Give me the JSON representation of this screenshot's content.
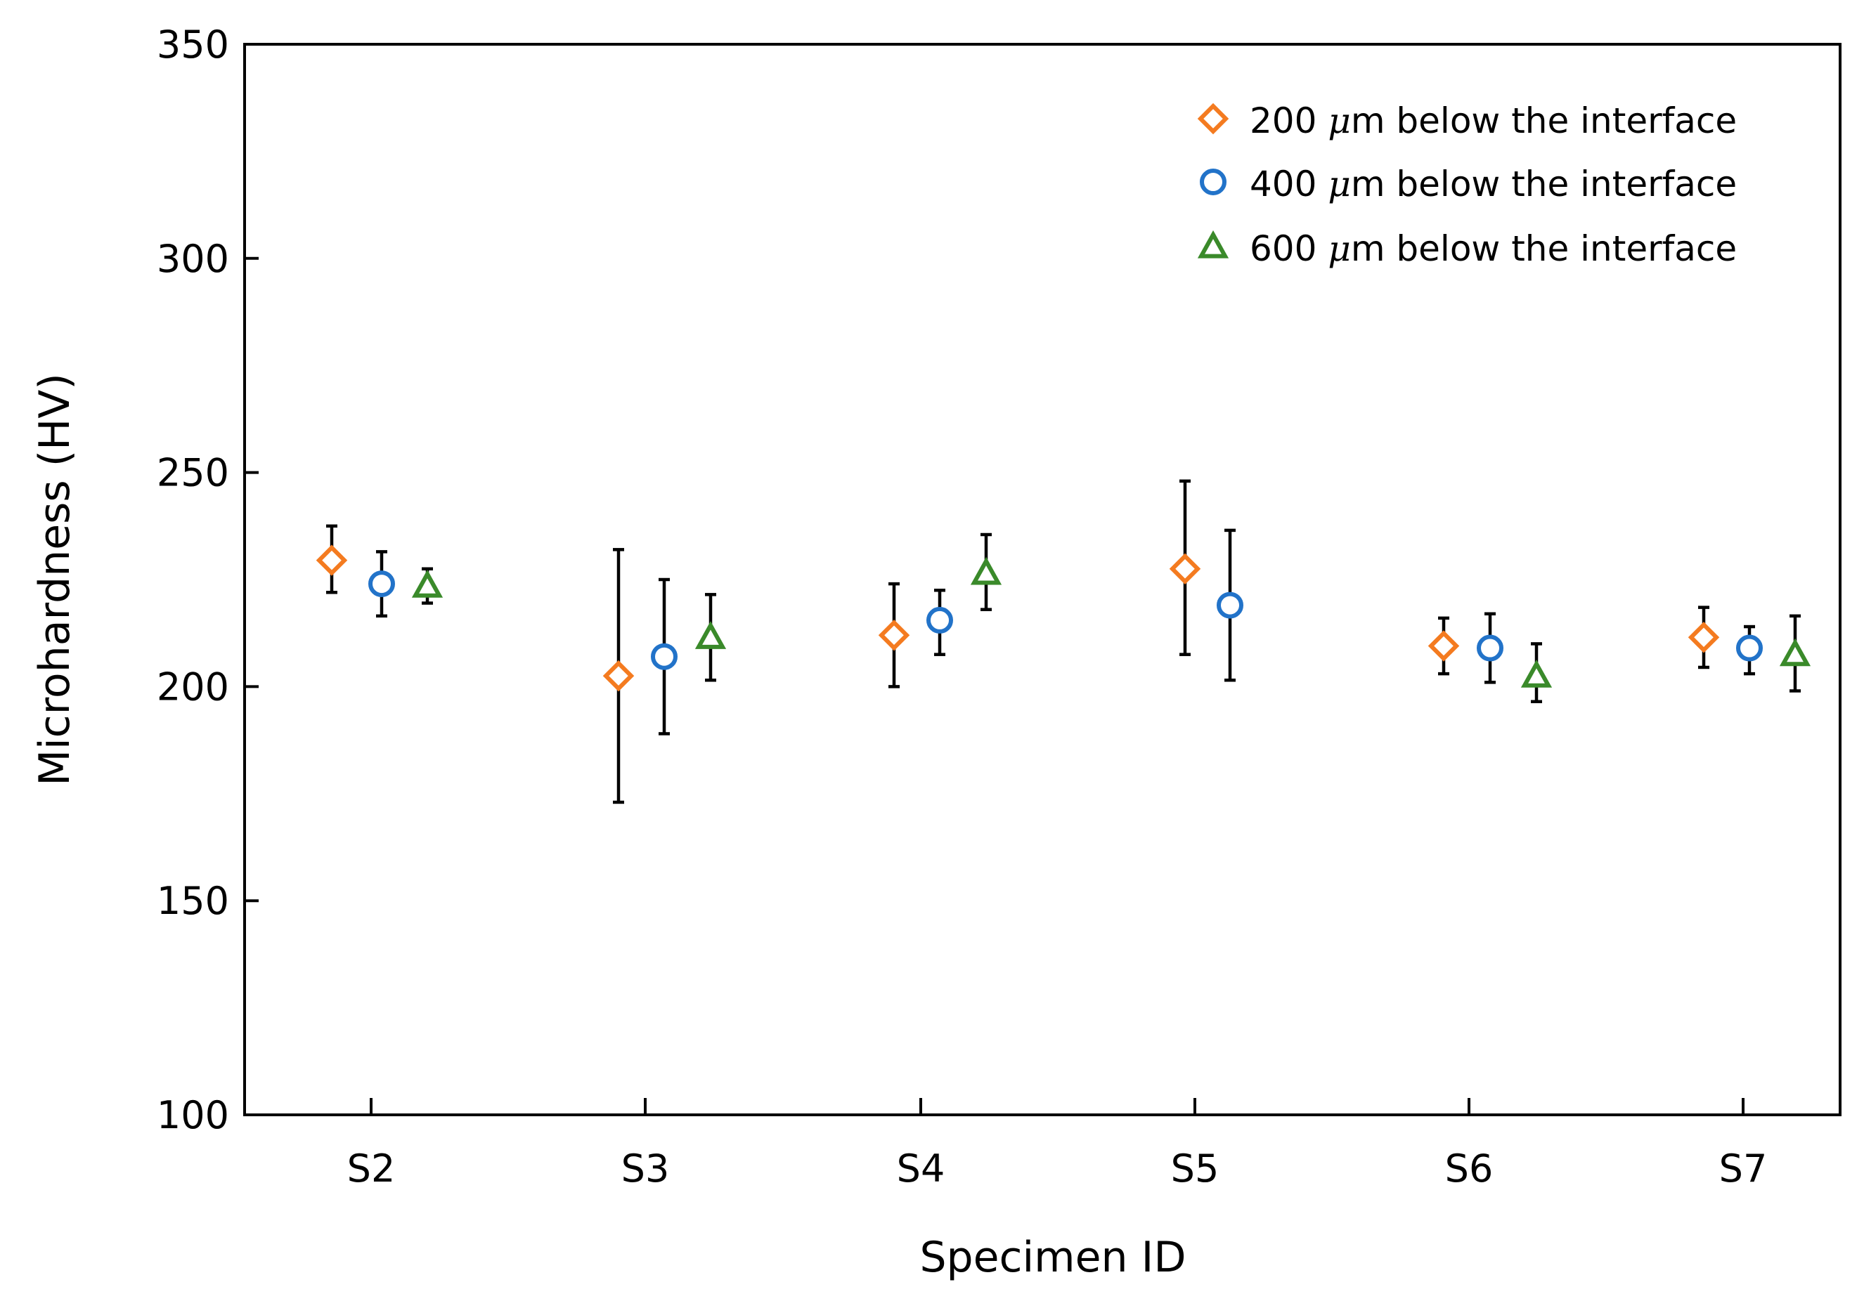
{
  "chart_data": {
    "type": "scatter",
    "title": "",
    "xlabel": "Specimen ID",
    "ylabel": "Microhardness (HV)",
    "categories": [
      "S2",
      "S3",
      "S4",
      "S5",
      "S6",
      "S7"
    ],
    "ylim": [
      100,
      350
    ],
    "yticks": [
      100,
      150,
      200,
      250,
      300,
      350
    ],
    "legend_position": "top-right",
    "grid": false,
    "series": [
      {
        "name": "200 μm below the interface",
        "label_number": "200",
        "label_unit": "μm",
        "label_rest": "below the interface",
        "color": "#F47B20",
        "marker": "diamond",
        "values": [
          229.5,
          202.5,
          212,
          227.5,
          209.5,
          211.5
        ],
        "err_low": [
          222,
          173,
          200,
          207.5,
          203,
          204.5
        ],
        "err_high": [
          237.5,
          232,
          224,
          248,
          216,
          218.5
        ]
      },
      {
        "name": "400 μm below the interface",
        "label_number": "400",
        "label_unit": "μm",
        "label_rest": "below the interface",
        "color": "#2273C9",
        "marker": "circle",
        "values": [
          224,
          207,
          215.5,
          219,
          209,
          209
        ],
        "err_low": [
          216.5,
          189,
          207.5,
          201.5,
          201,
          203
        ],
        "err_high": [
          231.5,
          225,
          222.5,
          236.5,
          217,
          214
        ]
      },
      {
        "name": "600 μm below the interface",
        "label_number": "600",
        "label_unit": "μm",
        "label_rest": "below the interface",
        "color": "#3A8A2A",
        "marker": "triangle",
        "values": [
          223.5,
          211.5,
          226.5,
          null,
          202.5,
          207.5
        ],
        "err_low": [
          219.5,
          201.5,
          218,
          null,
          196.5,
          199
        ],
        "err_high": [
          227.5,
          221.5,
          235.5,
          null,
          210,
          216.5
        ]
      }
    ]
  }
}
